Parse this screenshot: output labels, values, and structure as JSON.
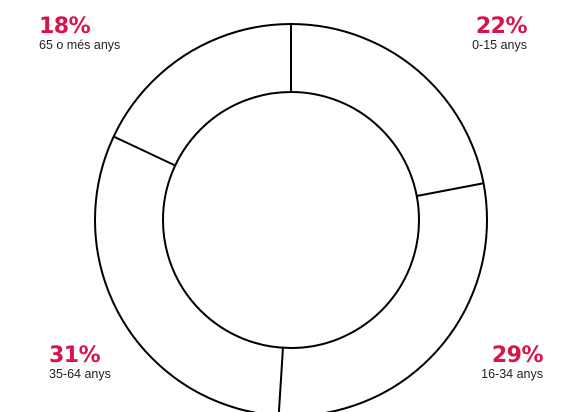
{
  "chart_data": {
    "type": "pie",
    "variant": "donut",
    "categories": [
      "0-15 anys",
      "16-34 anys",
      "35-64 anys",
      "65 o més anys"
    ],
    "values": [
      22,
      29,
      31,
      18
    ],
    "labels": {
      "seg0": {
        "pct": "22%",
        "cat": "0-15 anys"
      },
      "seg1": {
        "pct": "29%",
        "cat": "16-34 anys"
      },
      "seg2": {
        "pct": "31%",
        "cat": "35-64 anys"
      },
      "seg3": {
        "pct": "18%",
        "cat": "65 o més anys"
      }
    },
    "legend": "none",
    "grid": false
  },
  "colors": {
    "percent_text": "#d6154b",
    "category_text": "#222222",
    "stroke": "#000000",
    "fill": "#ffffff"
  }
}
